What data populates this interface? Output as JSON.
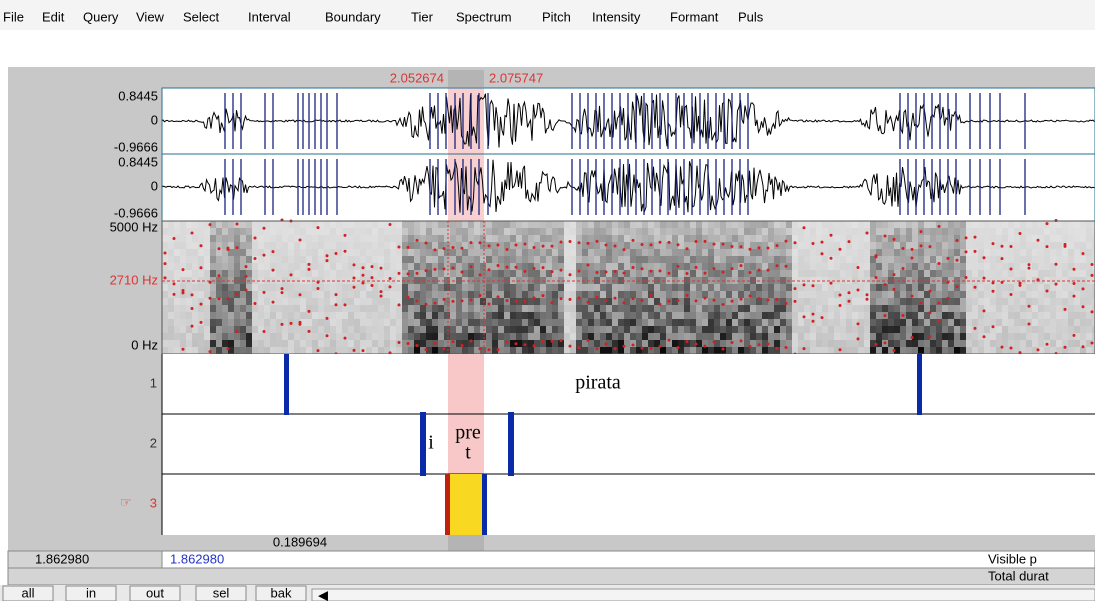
{
  "menu": [
    "File",
    "Edit",
    "Query",
    "View",
    "Select",
    "Interval",
    "Boundary",
    "Tier",
    "Spectrum",
    "Pitch",
    "Intensity",
    "Formant",
    "Puls"
  ],
  "selection": {
    "start": "2.052674",
    "end": "2.075747"
  },
  "waveform": {
    "channels": [
      {
        "max": "0.8445",
        "zero": "0",
        "min": "-0.9666"
      },
      {
        "max": "0.8445",
        "zero": "0",
        "min": "-0.9666"
      }
    ]
  },
  "spectrogram": {
    "top": "5000 Hz",
    "cursor": "2710 Hz",
    "bottom": "0 Hz"
  },
  "tiers": [
    {
      "number": "1",
      "intervals": [
        {
          "lines": [
            "pirata"
          ]
        }
      ]
    },
    {
      "number": "2",
      "intervals": [
        {
          "lines": [
            "i"
          ]
        },
        {
          "lines": [
            "pre",
            "t"
          ]
        }
      ]
    },
    {
      "number": "3"
    }
  ],
  "status": {
    "selection_duration": "0.189694",
    "window_start": "1.862980",
    "visible_start": "1.862980",
    "visible_label": "Visible p",
    "total_label": "Total durat"
  },
  "buttons": [
    "all",
    "in",
    "out",
    "sel",
    "bak"
  ]
}
